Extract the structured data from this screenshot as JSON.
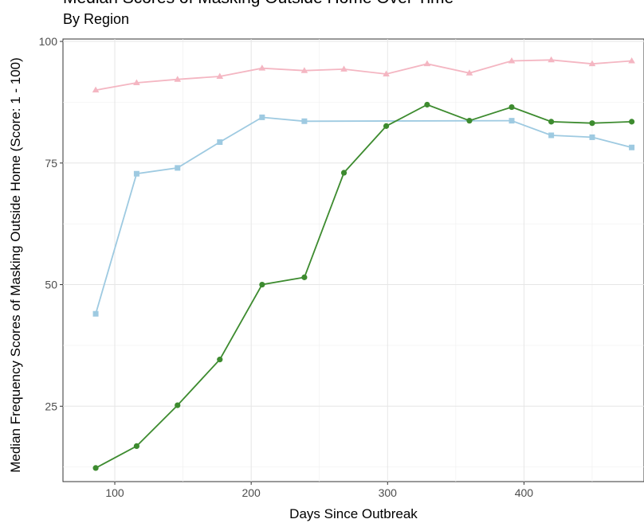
{
  "chart_data": {
    "type": "line",
    "title": "Median Scores of Masking Outside Home Over Time",
    "subtitle": "By Region",
    "xlabel": "Days Since Outbreak",
    "ylabel": "Median Frequency Scores of Masking Outside Home (Score: 1 - 100)",
    "xlim": [
      62,
      488
    ],
    "ylim": [
      9.5,
      100.5
    ],
    "xticks": [
      100,
      200,
      300,
      400
    ],
    "yticks": [
      25,
      50,
      75,
      100
    ],
    "grid": true,
    "series": [
      {
        "color": "#f4b6c2",
        "marker": "triangle",
        "x": [
          86,
          116,
          146,
          177,
          208,
          239,
          268,
          299,
          329,
          360,
          391,
          420,
          450,
          479
        ],
        "y": [
          90,
          91.5,
          92.2,
          92.8,
          94.5,
          94,
          94.3,
          93.3,
          95.4,
          93.5,
          96,
          96.2,
          95.4,
          96
        ]
      },
      {
        "color": "#9ecae1",
        "marker": "square",
        "x": [
          86,
          116,
          146,
          177,
          208,
          239,
          391,
          420,
          450,
          479
        ],
        "y": [
          44,
          72.8,
          74,
          79.3,
          84.4,
          83.6,
          83.7,
          80.7,
          80.3,
          78.2
        ]
      },
      {
        "color": "#3d8b2f",
        "marker": "circle",
        "x": [
          86,
          116,
          146,
          177,
          208,
          239,
          268,
          299,
          329,
          360,
          391,
          420,
          450,
          479
        ],
        "y": [
          12.3,
          16.8,
          25.2,
          34.6,
          50,
          51.5,
          73,
          82.6,
          87,
          83.7,
          86.5,
          83.5,
          83.2,
          83.5
        ]
      }
    ]
  }
}
